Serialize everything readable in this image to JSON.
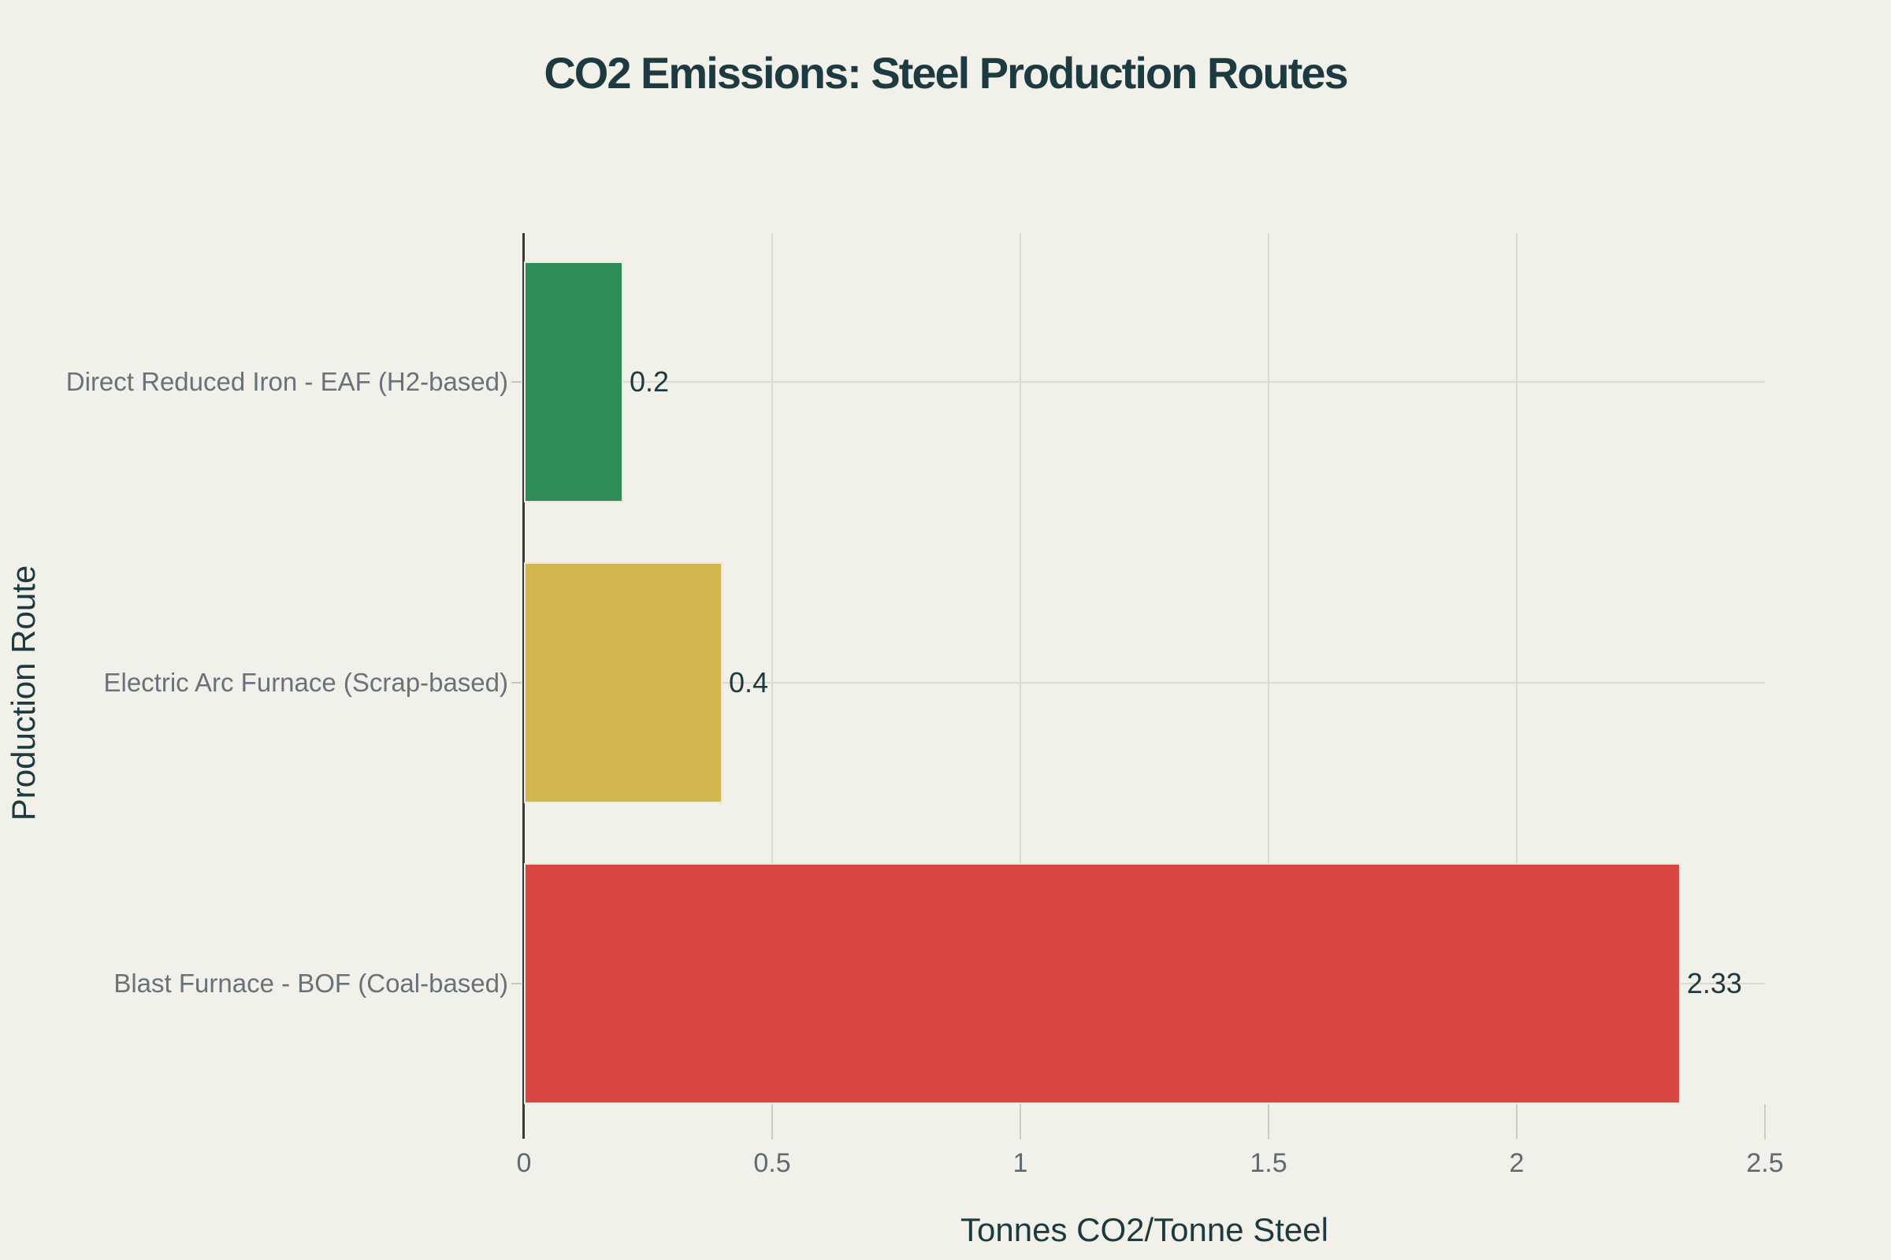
{
  "chart_data": {
    "type": "bar",
    "orientation": "horizontal",
    "title": "CO2 Emissions: Steel Production Routes",
    "xlabel": "Tonnes CO2/Tonne Steel",
    "ylabel": "Production Route",
    "categories": [
      "Direct Reduced Iron - EAF (H2-based)",
      "Electric Arc Furnace (Scrap-based)",
      "Blast Furnace - BOF (Coal-based)"
    ],
    "values": [
      0.2,
      0.4,
      2.33
    ],
    "value_labels": [
      "0.2",
      "0.4",
      "2.33"
    ],
    "bar_colors": [
      "#2e8c57",
      "#d1b74e",
      "#d94745"
    ],
    "xlim": [
      0,
      2.5
    ],
    "xticks": [
      0,
      0.5,
      1,
      1.5,
      2,
      2.5
    ],
    "xtick_labels": [
      "0",
      "0.5",
      "1",
      "1.5",
      "2",
      "2.5"
    ],
    "grid": true,
    "legend": "none",
    "colors": {
      "background": "#f1f0e9",
      "title_text": "#1d3a40",
      "axis_label_text": "#1d3a40",
      "category_label_text": "#68727b",
      "tick_label_text": "#5f6a72",
      "value_label_text": "#1d3a40",
      "gridline": "#dcdbd2",
      "axis_line": "#363b38",
      "bar_green": "#2e8c57",
      "bar_yellow": "#d1b74e",
      "bar_red": "#d94745"
    }
  }
}
